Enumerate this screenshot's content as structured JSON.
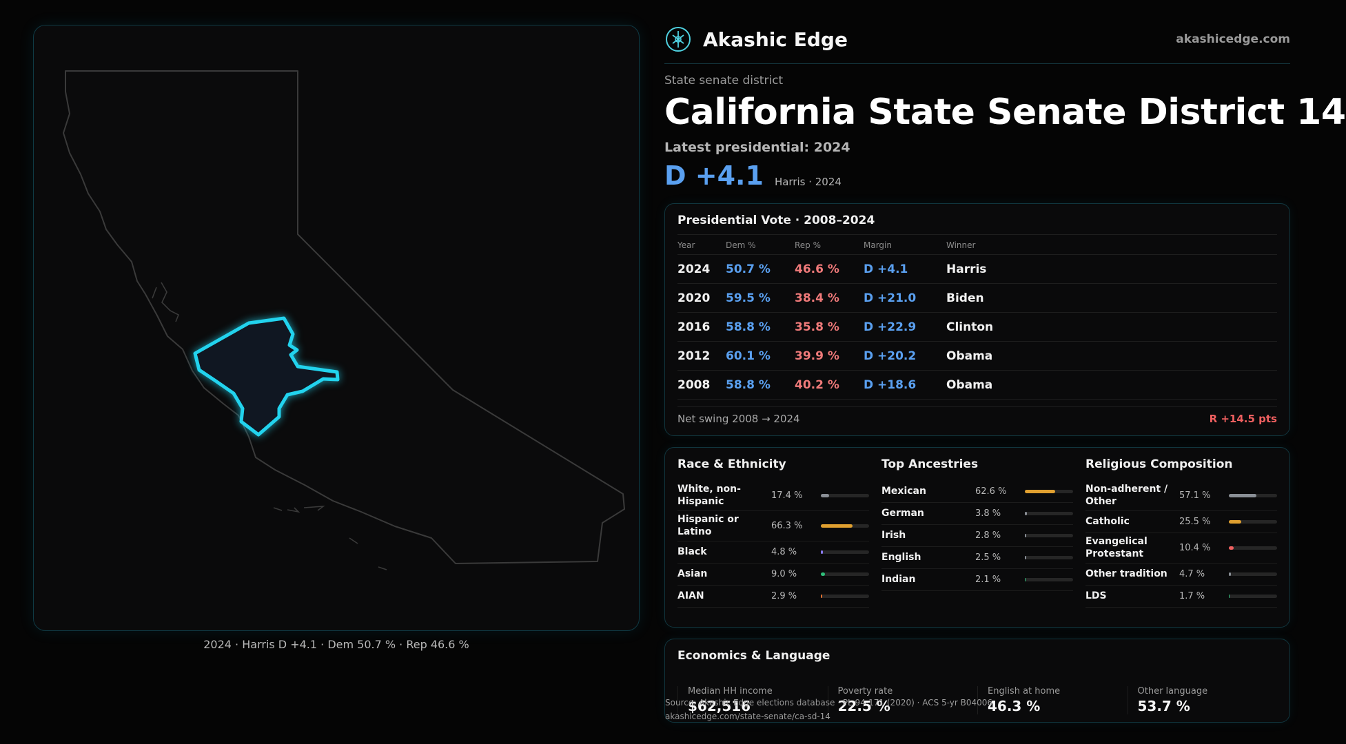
{
  "brand": {
    "name": "Akashic Edge",
    "url": "akashicedge.com"
  },
  "kicker": "State senate district",
  "title": "California State Senate District 14",
  "latest_label": "Latest presidential: 2024",
  "latest_margin": "D +4.1",
  "latest_sub": "Harris · 2024",
  "map_caption": "2024 · Harris D +4.1 · Dem 50.7 % · Rep 46.6 %",
  "presidential": {
    "title": "Presidential Vote · 2008–2024",
    "headers": [
      "Year",
      "Dem %",
      "Rep %",
      "Margin",
      "Winner"
    ],
    "rows": [
      [
        "2024",
        "50.7 %",
        "46.6 %",
        "D +4.1",
        "Harris"
      ],
      [
        "2020",
        "59.5 %",
        "38.4 %",
        "D +21.0",
        "Biden"
      ],
      [
        "2016",
        "58.8 %",
        "35.8 %",
        "D +22.9",
        "Clinton"
      ],
      [
        "2012",
        "60.1 %",
        "39.9 %",
        "D +20.2",
        "Obama"
      ],
      [
        "2008",
        "58.8 %",
        "40.2 %",
        "D +18.6",
        "Obama"
      ]
    ],
    "swing_label": "Net swing 2008 → 2024",
    "swing_value": "R +14.5 pts"
  },
  "race": {
    "title": "Race & Ethnicity",
    "items": [
      {
        "label": "White, non-Hispanic",
        "value": "17.4 %",
        "pct": 17.4,
        "color": "#8a8f96"
      },
      {
        "label": "Hispanic or Latino",
        "value": "66.3 %",
        "pct": 66.3,
        "color": "#e0a030"
      },
      {
        "label": "Black",
        "value": "4.8 %",
        "pct": 4.8,
        "color": "#8a7af0"
      },
      {
        "label": "Asian",
        "value": "9.0 %",
        "pct": 9.0,
        "color": "#2fbf7a"
      },
      {
        "label": "AIAN",
        "value": "2.9 %",
        "pct": 2.9,
        "color": "#e07030"
      }
    ]
  },
  "ancestry": {
    "title": "Top Ancestries",
    "items": [
      {
        "label": "Mexican",
        "value": "62.6 %",
        "pct": 62.6,
        "color": "#e0a030"
      },
      {
        "label": "German",
        "value": "3.8 %",
        "pct": 3.8,
        "color": "#8a8f96"
      },
      {
        "label": "Irish",
        "value": "2.8 %",
        "pct": 2.8,
        "color": "#8a8f96"
      },
      {
        "label": "English",
        "value": "2.5 %",
        "pct": 2.5,
        "color": "#8a8f96"
      },
      {
        "label": "Indian",
        "value": "2.1 %",
        "pct": 2.1,
        "color": "#2fbf7a"
      }
    ]
  },
  "religion": {
    "title": "Religious Composition",
    "items": [
      {
        "label": "Non-adherent / Other",
        "value": "57.1 %",
        "pct": 57.1,
        "color": "#8a8f96"
      },
      {
        "label": "Catholic",
        "value": "25.5 %",
        "pct": 25.5,
        "color": "#e0a030"
      },
      {
        "label": "Evangelical Protestant",
        "value": "10.4 %",
        "pct": 10.4,
        "color": "#f06060"
      },
      {
        "label": "Other tradition",
        "value": "4.7 %",
        "pct": 4.7,
        "color": "#8a8f96"
      },
      {
        "label": "LDS",
        "value": "1.7 %",
        "pct": 1.7,
        "color": "#2fbf7a"
      }
    ]
  },
  "economics": {
    "title": "Economics & Language",
    "items": [
      {
        "label": "Median HH income",
        "value": "$62,516"
      },
      {
        "label": "Poverty rate",
        "value": "22.5 %"
      },
      {
        "label": "English at home",
        "value": "46.3 %"
      },
      {
        "label": "Other language",
        "value": "53.7 %"
      }
    ],
    "source_line1": "Source: Akashic Edge elections database · PL 94-171 (2020) · ACS 5-yr B04006",
    "source_line2": "akashicedge.com/state-senate/ca-sd-14"
  }
}
